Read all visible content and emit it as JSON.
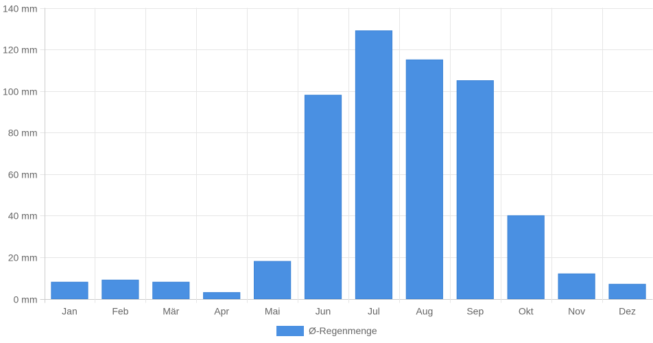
{
  "chart_data": {
    "type": "bar",
    "categories": [
      "Jan",
      "Feb",
      "Mär",
      "Apr",
      "Mai",
      "Jun",
      "Jul",
      "Aug",
      "Sep",
      "Okt",
      "Nov",
      "Dez"
    ],
    "series": [
      {
        "name": "Ø-Regenmenge",
        "values": [
          8,
          9,
          8,
          3,
          18,
          98,
          129,
          115,
          105,
          40,
          12,
          7
        ],
        "color": "#4a90e2"
      }
    ],
    "y_unit_suffix": " mm",
    "ylim": [
      0,
      140
    ],
    "y_ticks": [
      0,
      20,
      40,
      60,
      80,
      100,
      120,
      140
    ],
    "grid": true,
    "legend_position": "bottom-center",
    "title": "",
    "xlabel": "",
    "ylabel": ""
  }
}
